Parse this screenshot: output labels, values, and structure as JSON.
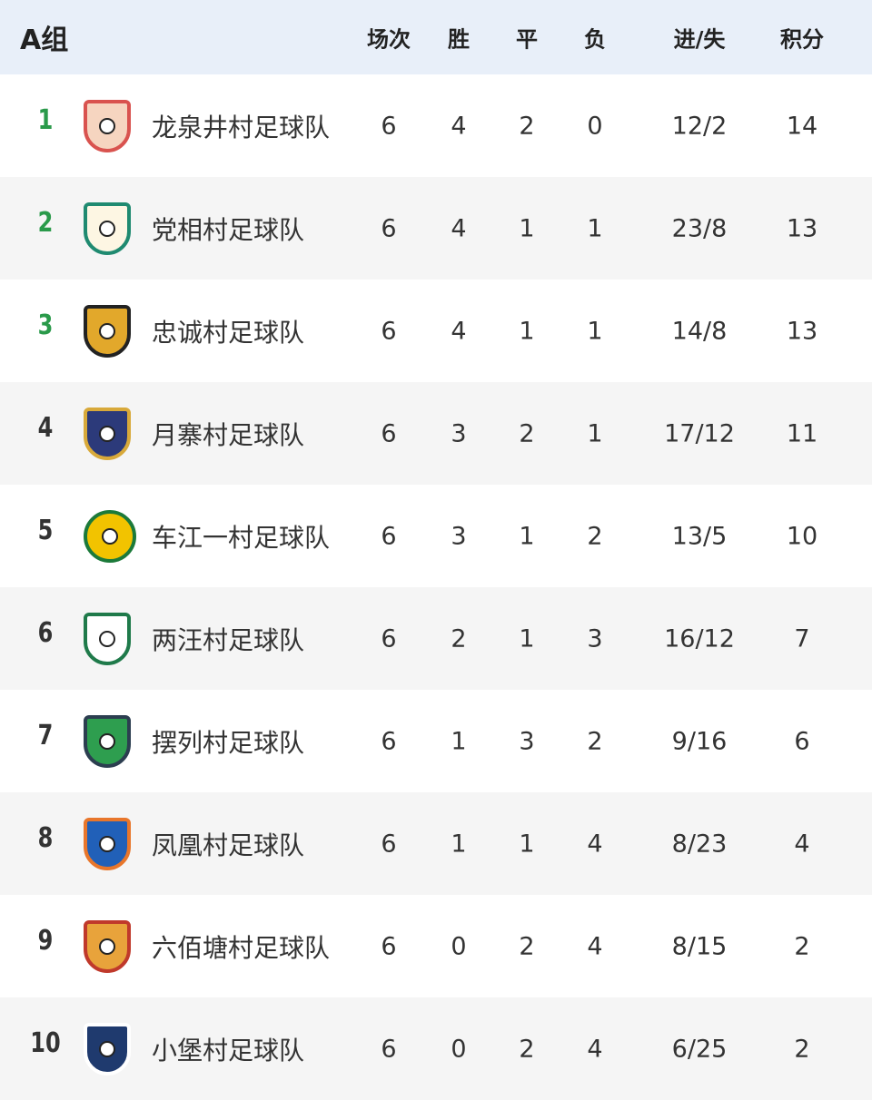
{
  "header": {
    "group": "A组",
    "columns": [
      "场次",
      "胜",
      "平",
      "负",
      "进/失",
      "积分"
    ]
  },
  "colors": {
    "header_bg": "#e8eff9",
    "top_rank": "#2a9a4a",
    "row_alt": "#f5f5f5"
  },
  "teams": [
    {
      "rank": "1",
      "name": "龙泉井村足球队",
      "played": "6",
      "win": "4",
      "draw": "2",
      "loss": "0",
      "goals": "12/2",
      "points": "14",
      "logo": "gate-logo",
      "logo_color": "#d9534f",
      "logo_bg": "#f6d5c0"
    },
    {
      "rank": "2",
      "name": "党相村足球队",
      "played": "6",
      "win": "4",
      "draw": "1",
      "loss": "1",
      "goals": "23/8",
      "points": "13",
      "logo": "shield-logo",
      "logo_color": "#1f8a70",
      "logo_bg": "#fdf6e3"
    },
    {
      "rank": "3",
      "name": "忠诚村足球队",
      "played": "6",
      "win": "4",
      "draw": "1",
      "loss": "1",
      "goals": "14/8",
      "points": "13",
      "logo": "bull-shield-logo",
      "logo_color": "#222222",
      "logo_bg": "#e2a82b"
    },
    {
      "rank": "4",
      "name": "月寨村足球队",
      "played": "6",
      "win": "3",
      "draw": "2",
      "loss": "1",
      "goals": "17/12",
      "points": "11",
      "logo": "crown-shield-logo",
      "logo_color": "#d8a93a",
      "logo_bg": "#2c3a7a"
    },
    {
      "rank": "5",
      "name": "车江一村足球队",
      "played": "6",
      "win": "3",
      "draw": "1",
      "loss": "2",
      "goals": "13/5",
      "points": "10",
      "logo": "round-logo",
      "logo_color": "#1c7a3a",
      "logo_bg": "#f2c300"
    },
    {
      "rank": "6",
      "name": "两汪村足球队",
      "played": "6",
      "win": "2",
      "draw": "1",
      "loss": "3",
      "goals": "16/12",
      "points": "7",
      "logo": "green-shield-logo",
      "logo_color": "#1f7a4a",
      "logo_bg": "#ffffff"
    },
    {
      "rank": "7",
      "name": "摆列村足球队",
      "played": "6",
      "win": "1",
      "draw": "3",
      "loss": "2",
      "goals": "9/16",
      "points": "6",
      "logo": "horned-shield-logo",
      "logo_color": "#2c3e50",
      "logo_bg": "#2e9e4f"
    },
    {
      "rank": "8",
      "name": "凤凰村足球队",
      "played": "6",
      "win": "1",
      "draw": "1",
      "loss": "4",
      "goals": "8/23",
      "points": "4",
      "logo": "phoenix-shield-logo",
      "logo_color": "#e8762b",
      "logo_bg": "#2160b8"
    },
    {
      "rank": "9",
      "name": "六佰塘村足球队",
      "played": "6",
      "win": "0",
      "draw": "2",
      "loss": "4",
      "goals": "8/15",
      "points": "2",
      "logo": "flame-shield-logo",
      "logo_color": "#c0392b",
      "logo_bg": "#e8a33b"
    },
    {
      "rank": "10",
      "name": "小堡村足球队",
      "played": "6",
      "win": "0",
      "draw": "2",
      "loss": "4",
      "goals": "6/25",
      "points": "2",
      "logo": "star-shield-logo",
      "logo_color": "#ffffff",
      "logo_bg": "#1f3a6e"
    }
  ]
}
